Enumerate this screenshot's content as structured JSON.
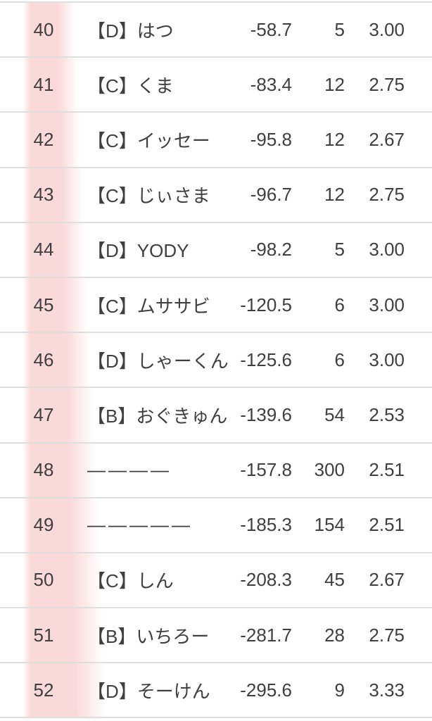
{
  "colors": {
    "row_highlight_pink": "#fad9d9",
    "divider": "#dedede",
    "text": "#3f3f3f",
    "background": "#ffffff"
  },
  "table": {
    "rows": [
      {
        "rank": "40",
        "name": "【D】はつ",
        "score": "-58.7",
        "games": "5",
        "avg": "3.00"
      },
      {
        "rank": "41",
        "name": "【C】くま",
        "score": "-83.4",
        "games": "12",
        "avg": "2.75"
      },
      {
        "rank": "42",
        "name": "【C】イッセー",
        "score": "-95.8",
        "games": "12",
        "avg": "2.67"
      },
      {
        "rank": "43",
        "name": "【C】じぃさま",
        "score": "-96.7",
        "games": "12",
        "avg": "2.75"
      },
      {
        "rank": "44",
        "name": "【D】YODY",
        "score": "-98.2",
        "games": "5",
        "avg": "3.00"
      },
      {
        "rank": "45",
        "name": "【C】ムササビ",
        "score": "-120.5",
        "games": "6",
        "avg": "3.00"
      },
      {
        "rank": "46",
        "name": "【D】しゃーくん",
        "score": "-125.6",
        "games": "6",
        "avg": "3.00"
      },
      {
        "rank": "47",
        "name": "【B】おぐきゅん",
        "score": "-139.6",
        "games": "54",
        "avg": "2.53"
      },
      {
        "rank": "48",
        "name": "————",
        "score": "-157.8",
        "games": "300",
        "avg": "2.51"
      },
      {
        "rank": "49",
        "name": "—————",
        "score": "-185.3",
        "games": "154",
        "avg": "2.51"
      },
      {
        "rank": "50",
        "name": "【C】しん",
        "score": "-208.3",
        "games": "45",
        "avg": "2.67"
      },
      {
        "rank": "51",
        "name": "【B】いちろー",
        "score": "-281.7",
        "games": "28",
        "avg": "2.75"
      },
      {
        "rank": "52",
        "name": "【D】そーけん",
        "score": "-295.6",
        "games": "9",
        "avg": "3.33"
      }
    ]
  }
}
